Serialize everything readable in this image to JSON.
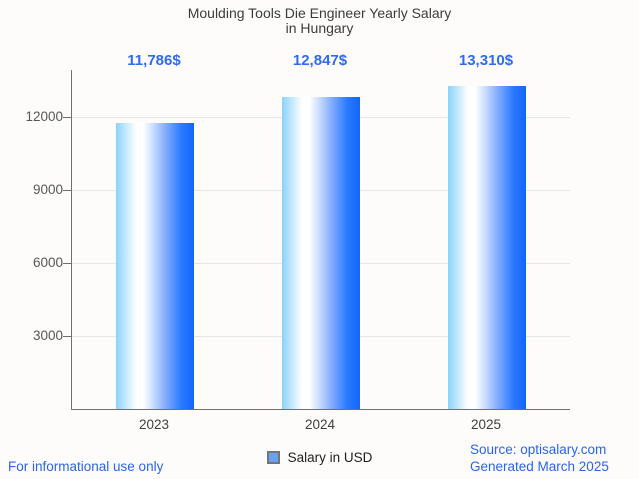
{
  "header": {
    "title_line1": "Moulding Tools Die Engineer Yearly Salary",
    "title_line2": "in Hungary"
  },
  "chart_data": {
    "type": "bar",
    "title": "Moulding Tools Die Engineer Yearly Salary in Hungary",
    "categories": [
      "2023",
      "2024",
      "2025"
    ],
    "values": [
      11786,
      12847,
      13310
    ],
    "value_labels": [
      "11,786$",
      "12,847$",
      "13,310$"
    ],
    "series": [
      {
        "name": "Salary in USD",
        "values": [
          11786,
          12847,
          13310
        ]
      }
    ],
    "xlabel": "",
    "ylabel": "",
    "yticks": [
      3000,
      6000,
      9000,
      12000
    ],
    "ytick_labels": [
      "3000",
      "6000",
      "9000",
      "12000"
    ],
    "ylim": [
      0,
      13950
    ],
    "grid": true,
    "legend_position": "bottom",
    "bar_gradient": [
      "#8ad3fb",
      "#ffffff",
      "#86aefc",
      "#1366fe"
    ]
  },
  "legend": {
    "label": "Salary in USD",
    "marker_fill": "#68a3f2",
    "marker_border": "#757575"
  },
  "footer": {
    "left_note": "For informational use only",
    "source": "Source: optisalary.com",
    "generated": "Generated March 2025"
  },
  "colors": {
    "value_label": "#2e6bf2",
    "link_blue": "#2a64ee",
    "title_text": "#3c3c3c",
    "axis": "#707070",
    "gridline": "#e8e7e6",
    "x_label": "#3f3f3f",
    "y_label": "#585858",
    "background": "#fdfcfb"
  }
}
